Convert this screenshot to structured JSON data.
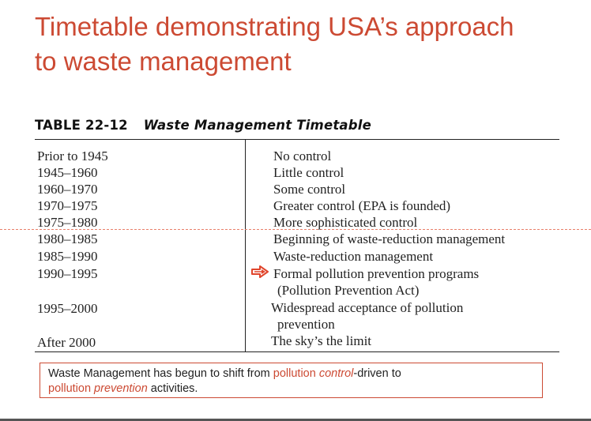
{
  "slide": {
    "title_line1": "Timetable demonstrating USA’s approach",
    "title_line2": "to waste management"
  },
  "table": {
    "number": "TABLE 22-12",
    "title": "Waste Management Timetable",
    "rows": [
      {
        "period": "Prior to 1945",
        "status": [
          "No control"
        ]
      },
      {
        "period": "1945–1960",
        "status": [
          "Little control"
        ]
      },
      {
        "period": "1960–1970",
        "status": [
          "Some control"
        ]
      },
      {
        "period": "1970–1975",
        "status": [
          "Greater control (EPA is founded)"
        ]
      },
      {
        "period": "1975–1980",
        "status": [
          "More sophisticated control"
        ]
      },
      {
        "period": "1980–1985",
        "status": [
          "Beginning of waste-reduction management"
        ]
      },
      {
        "period": "1985–1990",
        "status": [
          "Waste-reduction management"
        ]
      },
      {
        "period": "1990–1995",
        "status": [
          "Formal pollution prevention programs",
          "(Pollution Prevention Act)"
        ]
      },
      {
        "period": "1995–2000",
        "status": [
          "Widespread acceptance of pollution",
          "prevention"
        ]
      },
      {
        "period": "After 2000",
        "status": [
          "The sky’s the limit"
        ]
      }
    ]
  },
  "note": {
    "part1": "Waste Management has begun to shift from ",
    "part2": "pollution ",
    "part3": "control",
    "part4": "-driven to",
    "part5": "pollution ",
    "part6": "prevention",
    "part7": " activities."
  },
  "colors": {
    "accent": "#cc4a33",
    "arrow_fill": "#e0452c"
  },
  "icons": {
    "highlight_arrow": "right-arrow-icon"
  }
}
